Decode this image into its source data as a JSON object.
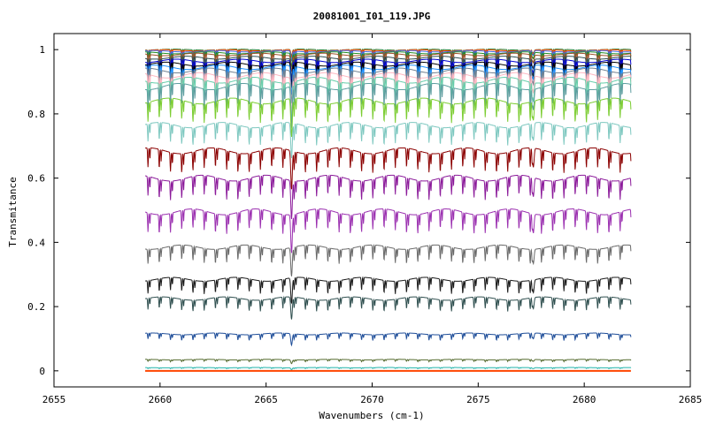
{
  "chart_data": {
    "type": "line",
    "title": "20081001_I01_119.JPG",
    "xlabel": "Wavenumbers (cm-1)",
    "ylabel": "Transmitance",
    "xlim": [
      2655,
      2685
    ],
    "ylim": [
      -0.05,
      1.05
    ],
    "x_ticks": [
      2655,
      2660,
      2665,
      2670,
      2675,
      2680,
      2685
    ],
    "y_ticks": [
      0,
      0.2,
      0.4,
      0.6,
      0.8,
      1
    ],
    "y_tick_labels": [
      "0",
      "0.2",
      "0.4",
      "0.6",
      "0.8",
      "1"
    ],
    "x_range_of_data": [
      2659.3,
      2682.2
    ],
    "line_spacing_cm1": 0.53,
    "feature_lines_cm1": [
      2666.2,
      2677.6
    ],
    "grid": false,
    "legend": "none",
    "series": [
      {
        "baseline": 1.0,
        "depth": 0.01,
        "color": "#2e7d32"
      },
      {
        "baseline": 0.998,
        "depth": 0.012,
        "color": "#ff4500"
      },
      {
        "baseline": 0.995,
        "depth": 0.015,
        "color": "#4169e1"
      },
      {
        "baseline": 0.99,
        "depth": 0.02,
        "color": "#228b22"
      },
      {
        "baseline": 0.985,
        "depth": 0.025,
        "color": "#a0522d"
      },
      {
        "baseline": 0.975,
        "depth": 0.03,
        "color": "#2f4f4f"
      },
      {
        "baseline": 0.965,
        "depth": 0.035,
        "color": "#0000cd"
      },
      {
        "baseline": 0.955,
        "depth": 0.04,
        "color": "#000000"
      },
      {
        "baseline": 0.945,
        "depth": 0.045,
        "color": "#1e90ff"
      },
      {
        "baseline": 0.935,
        "depth": 0.05,
        "color": "#708090"
      },
      {
        "baseline": 0.92,
        "depth": 0.055,
        "color": "#ffb6c1"
      },
      {
        "baseline": 0.905,
        "depth": 0.06,
        "color": "#66cdaa"
      },
      {
        "baseline": 0.885,
        "depth": 0.065,
        "color": "#5f9ea0"
      },
      {
        "baseline": 0.84,
        "depth": 0.06,
        "color": "#7ccd32"
      },
      {
        "baseline": 0.765,
        "depth": 0.055,
        "color": "#7ec8c0"
      },
      {
        "baseline": 0.685,
        "depth": 0.06,
        "color": "#8b0000"
      },
      {
        "baseline": 0.6,
        "depth": 0.06,
        "color": "#8b1a9a"
      },
      {
        "baseline": 0.495,
        "depth": 0.06,
        "color": "#9b30b0"
      },
      {
        "baseline": 0.385,
        "depth": 0.045,
        "color": "#696969"
      },
      {
        "baseline": 0.285,
        "depth": 0.04,
        "color": "#1a1a1a"
      },
      {
        "baseline": 0.225,
        "depth": 0.035,
        "color": "#2f4f4f"
      },
      {
        "baseline": 0.115,
        "depth": 0.018,
        "color": "#1f4e99"
      },
      {
        "baseline": 0.035,
        "depth": 0.006,
        "color": "#556b2f"
      },
      {
        "baseline": 0.01,
        "depth": 0.003,
        "color": "#20b2aa"
      },
      {
        "baseline": 0.0,
        "depth": 0.0,
        "color": "#ff4500"
      }
    ]
  }
}
